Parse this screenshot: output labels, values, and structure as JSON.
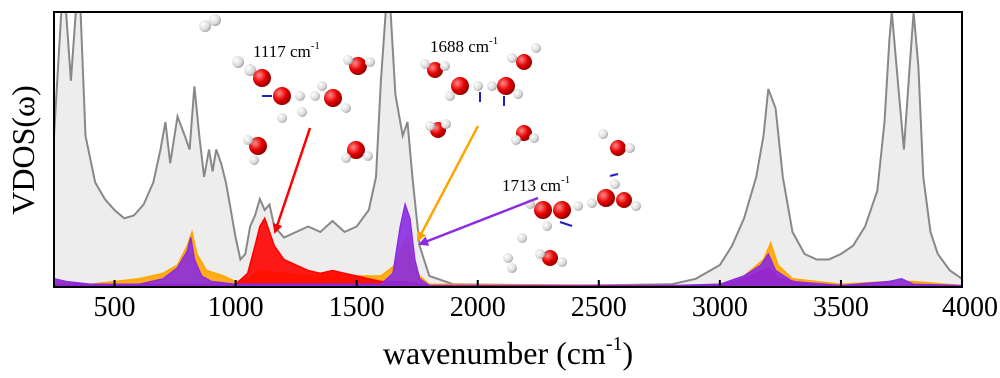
{
  "chart_data": {
    "type": "line",
    "xlabel": "wavenumber (cm",
    "xlabel_sup": "-1",
    "xlabel_close": ")",
    "ylabel": "VDOS(ω)",
    "xlim": [
      250,
      4000
    ],
    "ylim": [
      0,
      1.0
    ],
    "x_ticks": [
      {
        "value": 500,
        "label": "500"
      },
      {
        "value": 1000,
        "label": "1000"
      },
      {
        "value": 1500,
        "label": "1500"
      },
      {
        "value": 2000,
        "label": "2000"
      },
      {
        "value": 2500,
        "label": "2500"
      },
      {
        "value": 3000,
        "label": "3000"
      },
      {
        "value": 3500,
        "label": "3500"
      },
      {
        "value": 4000,
        "label": "4000"
      }
    ],
    "grid": false,
    "series": [
      {
        "color": "#888888",
        "points": [
          [
            250,
            0.55
          ],
          [
            280,
            1.0
          ],
          [
            300,
            1.0
          ],
          [
            320,
            0.75
          ],
          [
            340,
            1.0
          ],
          [
            360,
            1.0
          ],
          [
            380,
            0.55
          ],
          [
            420,
            0.38
          ],
          [
            460,
            0.32
          ],
          [
            500,
            0.28
          ],
          [
            540,
            0.25
          ],
          [
            580,
            0.26
          ],
          [
            620,
            0.3
          ],
          [
            660,
            0.38
          ],
          [
            690,
            0.5
          ],
          [
            710,
            0.6
          ],
          [
            730,
            0.45
          ],
          [
            760,
            0.62
          ],
          [
            790,
            0.55
          ],
          [
            810,
            0.5
          ],
          [
            830,
            0.73
          ],
          [
            850,
            0.55
          ],
          [
            870,
            0.4
          ],
          [
            890,
            0.5
          ],
          [
            905,
            0.42
          ],
          [
            920,
            0.5
          ],
          [
            940,
            0.45
          ],
          [
            960,
            0.38
          ],
          [
            980,
            0.28
          ],
          [
            1000,
            0.18
          ],
          [
            1020,
            0.1
          ],
          [
            1040,
            0.12
          ],
          [
            1060,
            0.22
          ],
          [
            1080,
            0.26
          ],
          [
            1100,
            0.32
          ],
          [
            1120,
            0.28
          ],
          [
            1140,
            0.3
          ],
          [
            1160,
            0.22
          ],
          [
            1180,
            0.2
          ],
          [
            1200,
            0.18
          ],
          [
            1250,
            0.2
          ],
          [
            1300,
            0.22
          ],
          [
            1350,
            0.2
          ],
          [
            1400,
            0.24
          ],
          [
            1450,
            0.2
          ],
          [
            1500,
            0.22
          ],
          [
            1550,
            0.28
          ],
          [
            1580,
            0.4
          ],
          [
            1600,
            0.75
          ],
          [
            1620,
            1.0
          ],
          [
            1640,
            1.0
          ],
          [
            1660,
            0.7
          ],
          [
            1690,
            0.55
          ],
          [
            1710,
            0.6
          ],
          [
            1730,
            0.4
          ],
          [
            1760,
            0.15
          ],
          [
            1800,
            0.04
          ],
          [
            1900,
            0.01
          ],
          [
            2400,
            0.005
          ],
          [
            2800,
            0.01
          ],
          [
            2900,
            0.03
          ],
          [
            3000,
            0.08
          ],
          [
            3050,
            0.15
          ],
          [
            3100,
            0.25
          ],
          [
            3150,
            0.4
          ],
          [
            3180,
            0.55
          ],
          [
            3200,
            0.72
          ],
          [
            3230,
            0.65
          ],
          [
            3260,
            0.4
          ],
          [
            3300,
            0.2
          ],
          [
            3350,
            0.12
          ],
          [
            3400,
            0.1
          ],
          [
            3450,
            0.1
          ],
          [
            3500,
            0.12
          ],
          [
            3550,
            0.15
          ],
          [
            3600,
            0.22
          ],
          [
            3650,
            0.35
          ],
          [
            3680,
            0.6
          ],
          [
            3700,
            0.9
          ],
          [
            3710,
            1.0
          ],
          [
            3740,
            0.7
          ],
          [
            3760,
            0.5
          ],
          [
            3780,
            0.75
          ],
          [
            3800,
            1.0
          ],
          [
            3820,
            0.8
          ],
          [
            3840,
            0.4
          ],
          [
            3870,
            0.2
          ],
          [
            3900,
            0.12
          ],
          [
            3950,
            0.06
          ],
          [
            4000,
            0.03
          ]
        ]
      },
      {
        "color": "#ffa500",
        "points": [
          [
            250,
            0.02
          ],
          [
            400,
            0.01
          ],
          [
            600,
            0.03
          ],
          [
            700,
            0.05
          ],
          [
            760,
            0.08
          ],
          [
            800,
            0.15
          ],
          [
            820,
            0.2
          ],
          [
            840,
            0.12
          ],
          [
            880,
            0.06
          ],
          [
            950,
            0.04
          ],
          [
            1000,
            0.02
          ],
          [
            1050,
            0.03
          ],
          [
            1100,
            0.06
          ],
          [
            1200,
            0.05
          ],
          [
            1300,
            0.04
          ],
          [
            1400,
            0.05
          ],
          [
            1500,
            0.04
          ],
          [
            1600,
            0.04
          ],
          [
            1660,
            0.08
          ],
          [
            1690,
            0.15
          ],
          [
            1710,
            0.18
          ],
          [
            1730,
            0.1
          ],
          [
            1760,
            0.04
          ],
          [
            1800,
            0.01
          ],
          [
            2800,
            0.005
          ],
          [
            3000,
            0.01
          ],
          [
            3100,
            0.04
          ],
          [
            3180,
            0.1
          ],
          [
            3210,
            0.16
          ],
          [
            3240,
            0.08
          ],
          [
            3300,
            0.03
          ],
          [
            3500,
            0.01
          ],
          [
            3700,
            0.02
          ],
          [
            3800,
            0.02
          ],
          [
            4000,
            0.005
          ]
        ]
      },
      {
        "color": "#ff0000",
        "points": [
          [
            250,
            0.01
          ],
          [
            700,
            0.01
          ],
          [
            900,
            0.01
          ],
          [
            1000,
            0.01
          ],
          [
            1050,
            0.05
          ],
          [
            1080,
            0.15
          ],
          [
            1100,
            0.22
          ],
          [
            1120,
            0.25
          ],
          [
            1140,
            0.2
          ],
          [
            1160,
            0.15
          ],
          [
            1200,
            0.1
          ],
          [
            1250,
            0.08
          ],
          [
            1300,
            0.06
          ],
          [
            1350,
            0.05
          ],
          [
            1400,
            0.06
          ],
          [
            1450,
            0.05
          ],
          [
            1500,
            0.04
          ],
          [
            1550,
            0.03
          ],
          [
            1600,
            0.02
          ],
          [
            1700,
            0.02
          ],
          [
            1800,
            0.005
          ],
          [
            3000,
            0.005
          ],
          [
            3100,
            0.03
          ],
          [
            3200,
            0.07
          ],
          [
            3250,
            0.03
          ],
          [
            3400,
            0.005
          ],
          [
            4000,
            0.005
          ]
        ]
      },
      {
        "color": "#8a2be2",
        "points": [
          [
            250,
            0.03
          ],
          [
            300,
            0.02
          ],
          [
            400,
            0.01
          ],
          [
            600,
            0.01
          ],
          [
            700,
            0.03
          ],
          [
            760,
            0.07
          ],
          [
            800,
            0.13
          ],
          [
            815,
            0.18
          ],
          [
            830,
            0.1
          ],
          [
            860,
            0.04
          ],
          [
            900,
            0.02
          ],
          [
            1000,
            0.01
          ],
          [
            1600,
            0.01
          ],
          [
            1650,
            0.05
          ],
          [
            1680,
            0.22
          ],
          [
            1700,
            0.3
          ],
          [
            1720,
            0.25
          ],
          [
            1740,
            0.1
          ],
          [
            1760,
            0.03
          ],
          [
            1800,
            0.005
          ],
          [
            2800,
            0.005
          ],
          [
            3000,
            0.01
          ],
          [
            3100,
            0.04
          ],
          [
            3170,
            0.08
          ],
          [
            3200,
            0.12
          ],
          [
            3230,
            0.06
          ],
          [
            3300,
            0.02
          ],
          [
            3500,
            0.005
          ],
          [
            3700,
            0.02
          ],
          [
            3750,
            0.03
          ],
          [
            3800,
            0.01
          ],
          [
            4000,
            0.005
          ]
        ]
      }
    ],
    "annotations": [
      {
        "label": "1117 cm",
        "sup": "-1",
        "arrow_color": "#ff0000",
        "arrow_to_x": 1130,
        "arrow_to_y": 0.2
      },
      {
        "label": "1688 cm",
        "sup": "-1",
        "arrow_color": "#ffa500",
        "arrow_to_x": 1700,
        "arrow_to_y": 0.17
      },
      {
        "label": "1713 cm",
        "sup": "-1",
        "arrow_color": "#8a2be2",
        "arrow_to_x": 1720,
        "arrow_to_y": 0.14
      }
    ]
  }
}
